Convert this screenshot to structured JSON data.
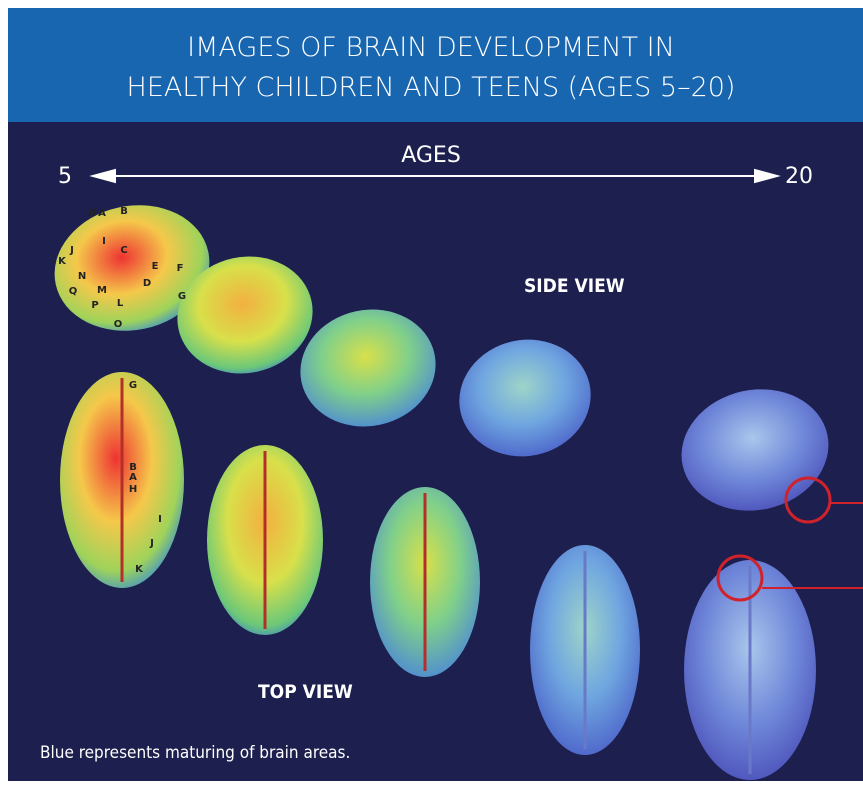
{
  "header": {
    "title_lines": [
      "IMAGES OF BRAIN DEVELOPMENT IN",
      "HEALTHY CHILDREN AND TEENS (AGES 5–20)"
    ]
  },
  "axis": {
    "label": "AGES",
    "start": "5",
    "end": "20"
  },
  "views": {
    "side": "SIDE VIEW",
    "top": "TOP VIEW"
  },
  "side_labels": [
    "H",
    "A",
    "B",
    "I",
    "C",
    "J",
    "K",
    "N",
    "E",
    "F",
    "D",
    "Q",
    "M",
    "G",
    "P",
    "L",
    "O"
  ],
  "top_labels": [
    "G",
    "B",
    "A",
    "H",
    "I",
    "J",
    "K"
  ],
  "caption": "Blue represents maturing of brain areas."
}
